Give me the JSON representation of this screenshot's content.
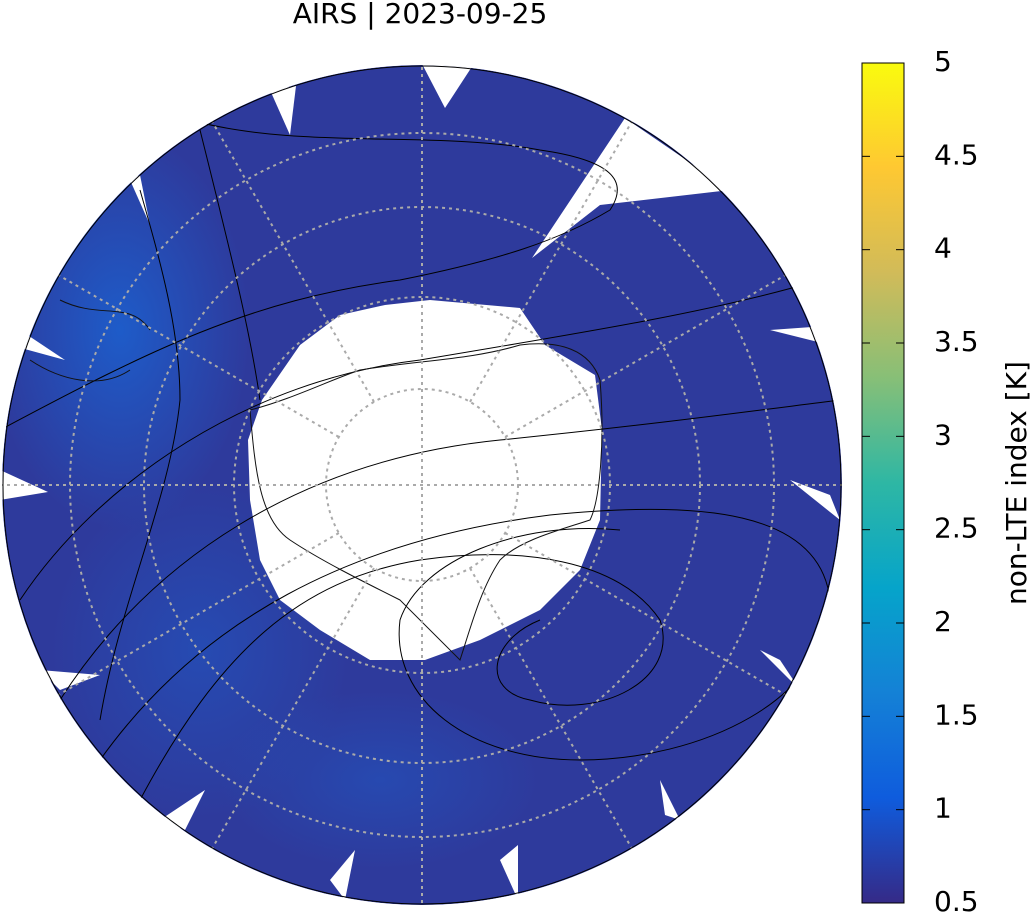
{
  "title": "AIRS | 2023-09-25",
  "colorbar": {
    "label": "non-LTE index [K]",
    "lim": [
      0.5,
      5
    ],
    "ticks": [
      0.5,
      1,
      1.5,
      2,
      2.5,
      3,
      3.5,
      4,
      4.5,
      5
    ],
    "colors": [
      "#352a87",
      "#0f5cdd",
      "#1481d6",
      "#06a4ca",
      "#2eb7a4",
      "#87bf77",
      "#d1bb59",
      "#fec832",
      "#f9fb0e"
    ]
  }
}
